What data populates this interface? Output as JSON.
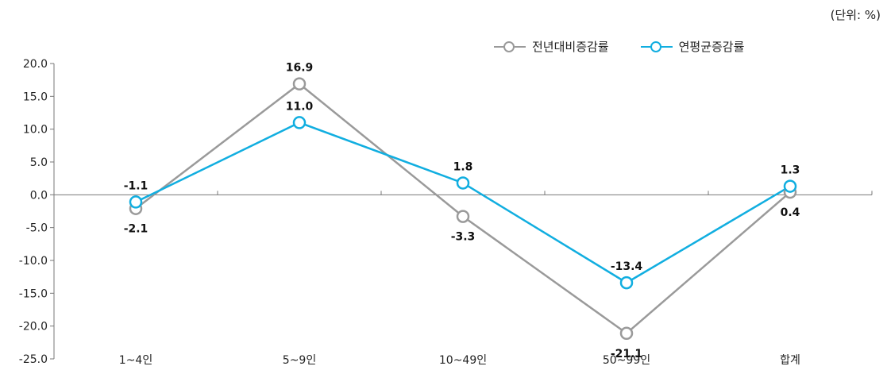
{
  "unit_label": "(단위: %)",
  "legend": [
    {
      "name": "전년대비증감률",
      "color": "#9a9a9a"
    },
    {
      "name": "연평균증감률",
      "color": "#11aee0"
    }
  ],
  "chart_data": {
    "type": "line",
    "categories": [
      "1~4인",
      "5~9인",
      "10~49인",
      "50~99인",
      "합계"
    ],
    "series": [
      {
        "name": "전년대비증감률",
        "values": [
          -2.1,
          16.9,
          -3.3,
          -21.1,
          0.4
        ],
        "color": "#9a9a9a",
        "labels": [
          "-2.1",
          "16.9",
          "-3.3",
          "-21.1",
          "0.4"
        ]
      },
      {
        "name": "연평균증감률",
        "values": [
          -1.1,
          11.0,
          1.8,
          -13.4,
          1.3
        ],
        "color": "#11aee0",
        "labels": [
          "-1.1",
          "11.0",
          "1.8",
          "-13.4",
          "1.3"
        ]
      }
    ],
    "ylim": [
      -25,
      20
    ],
    "yticks": [
      20,
      15,
      10,
      5,
      0,
      -5,
      -10,
      -15,
      -20,
      -25
    ],
    "ytick_labels": [
      "20.0",
      "15.0",
      "10.0",
      "5.0",
      "0.0",
      "-5.0",
      "-10.0",
      "-15.0",
      "-20.0",
      "-25.0"
    ],
    "grid": false,
    "legend_position": "top-right"
  }
}
